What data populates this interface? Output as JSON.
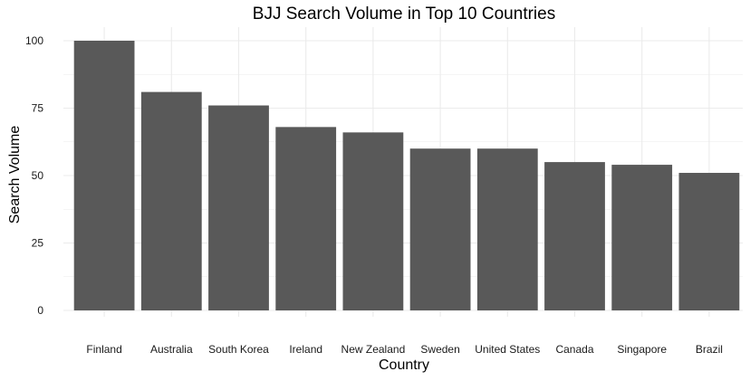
{
  "chart_data": {
    "type": "bar",
    "title": "BJJ Search Volume in Top 10 Countries",
    "xlabel": "Country",
    "ylabel": "Search Volume",
    "categories": [
      "Finland",
      "Australia",
      "South Korea",
      "Ireland",
      "New Zealand",
      "Sweden",
      "United States",
      "Canada",
      "Singapore",
      "Brazil"
    ],
    "values": [
      100,
      81,
      76,
      68,
      66,
      60,
      60,
      55,
      54,
      51
    ],
    "ylim": [
      0,
      100
    ],
    "yticks": [
      0,
      25,
      50,
      75,
      100
    ],
    "grid": true,
    "legend": "none",
    "colors": {
      "bar": "#595959",
      "grid": "#ebebeb",
      "text": "#000000",
      "tick_text": "#1a1a1a"
    }
  }
}
